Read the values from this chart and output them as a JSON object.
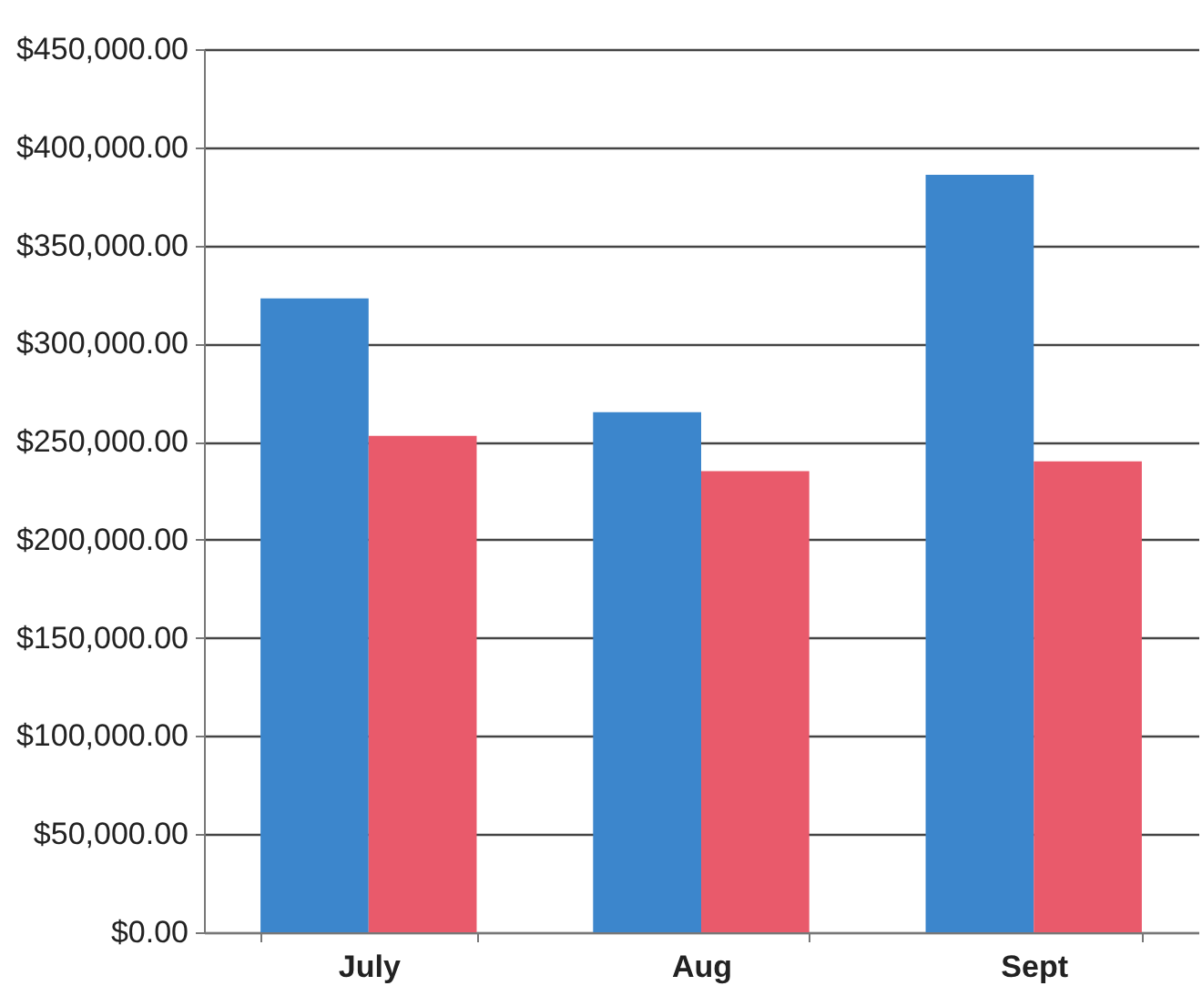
{
  "chart_data": {
    "type": "bar",
    "categories": [
      "July",
      "Aug",
      "Sept"
    ],
    "series": [
      {
        "color": "#3c86cc",
        "values": [
          323000,
          265000,
          386000
        ]
      },
      {
        "color": "#e95a6b",
        "values": [
          253000,
          235000,
          240000
        ]
      }
    ],
    "ylim": [
      0,
      450000
    ],
    "yticks": [
      {
        "value": 0,
        "label": "$0.00"
      },
      {
        "value": 50000,
        "label": "$50,000.00"
      },
      {
        "value": 100000,
        "label": "$100,000.00"
      },
      {
        "value": 150000,
        "label": "$150,000.00"
      },
      {
        "value": 200000,
        "label": "$200,000.00"
      },
      {
        "value": 250000,
        "label": "$250,000.00"
      },
      {
        "value": 300000,
        "label": "$300,000.00"
      },
      {
        "value": 350000,
        "label": "$350,000.00"
      },
      {
        "value": 400000,
        "label": "$400,000.00"
      },
      {
        "value": 450000,
        "label": "$450,000.00"
      }
    ],
    "grid": "y",
    "legend": false
  }
}
